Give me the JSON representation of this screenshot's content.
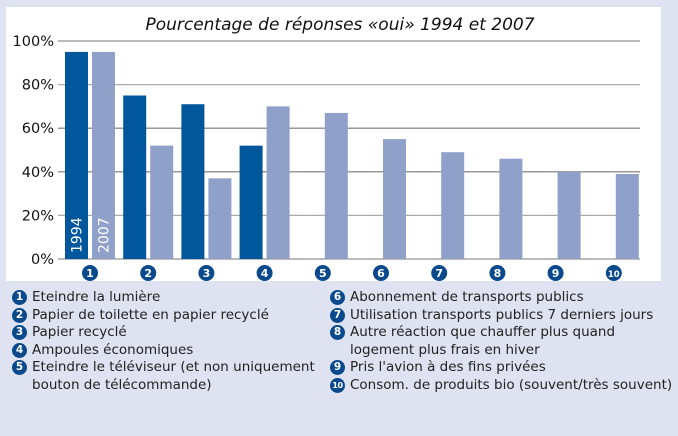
{
  "chart_data": {
    "type": "bar",
    "title": "Pourcentage de réponses «oui» 1994 et 2007",
    "xlabel": "",
    "ylabel": "",
    "ylim": [
      0,
      100
    ],
    "yticks": [
      "0%",
      "20%",
      "40%",
      "60%",
      "80%",
      "100%"
    ],
    "ytick_values": [
      0,
      20,
      40,
      60,
      80,
      100
    ],
    "grid": true,
    "categories": [
      "1",
      "2",
      "3",
      "4",
      "5",
      "6",
      "7",
      "8",
      "9",
      "10"
    ],
    "series": [
      {
        "name": "1994",
        "color": "#00579c",
        "values": [
          95,
          75,
          71,
          52,
          null,
          null,
          null,
          null,
          null,
          null
        ]
      },
      {
        "name": "2007",
        "color": "#8fa0c9",
        "values": [
          95,
          52,
          37,
          70,
          67,
          55,
          49,
          46,
          40,
          39
        ]
      }
    ],
    "series_labels_in_bar": [
      "1994",
      "2007"
    ]
  },
  "legend": {
    "items": [
      {
        "num": "1",
        "label": "Eteindre la lumière"
      },
      {
        "num": "2",
        "label": "Papier de toilette en papier recyclé"
      },
      {
        "num": "3",
        "label": "Papier recyclé"
      },
      {
        "num": "4",
        "label": "Ampoules économiques"
      },
      {
        "num": "5",
        "label": "Eteindre le téléviseur (et non uniquement bouton de télécommande)"
      },
      {
        "num": "6",
        "label": "Abonnement de transports publics"
      },
      {
        "num": "7",
        "label": "Utilisation transports publics 7 derniers jours"
      },
      {
        "num": "8",
        "label": "Autre réaction que chauffer plus quand logement plus frais en hiver"
      },
      {
        "num": "9",
        "label": "Pris l'avion à des fins privées"
      },
      {
        "num": "10",
        "label": "Consom. de produits bio (souvent/très souvent)"
      }
    ]
  },
  "colors": {
    "background": "#dfe2f0",
    "badge": "#0a4a8c"
  }
}
